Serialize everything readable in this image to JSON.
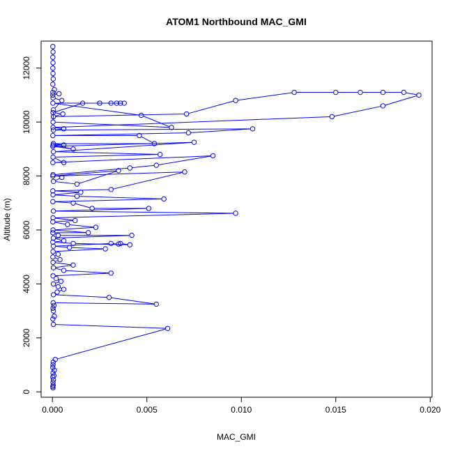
{
  "chart_data": {
    "type": "line",
    "title": "ATOM1 Northbound MAC_GMI",
    "xlabel": "MAC_GMI",
    "ylabel": "Altitude (m)",
    "xlim": [
      -0.0006,
      0.0201
    ],
    "ylim": [
      -200,
      13000
    ],
    "x_ticks": [
      0.0,
      0.005,
      0.01,
      0.015,
      0.02
    ],
    "x_tick_labels": [
      "0.000",
      "0.005",
      "0.010",
      "0.015",
      "0.020"
    ],
    "y_ticks": [
      0,
      2000,
      4000,
      6000,
      8000,
      10000,
      12000
    ],
    "y_tick_labels": [
      "0",
      "2000",
      "4000",
      "6000",
      "8000",
      "10000",
      "12000"
    ],
    "grid": false,
    "legend": "none",
    "marker": "open-circle",
    "series_color": "#0000ff",
    "series": [
      {
        "points": [
          [
            3e-05,
            150
          ],
          [
            2e-05,
            200
          ],
          [
            4e-05,
            250
          ],
          [
            3e-05,
            350
          ],
          [
            5e-05,
            450
          ],
          [
            2e-05,
            550
          ],
          [
            8e-05,
            600
          ],
          [
            3e-05,
            700
          ],
          [
            0.0001,
            800
          ],
          [
            2e-05,
            900
          ],
          [
            3e-05,
            1000
          ],
          [
            4e-05,
            1100
          ],
          [
            0.00015,
            1200
          ],
          [
            0.0061,
            2350
          ],
          [
            5e-05,
            2500
          ],
          [
            2e-05,
            2700
          ],
          [
            0.0001,
            2800
          ],
          [
            5e-05,
            3000
          ],
          [
            3e-05,
            3100
          ],
          [
            8e-05,
            3200
          ],
          [
            4e-05,
            3300
          ],
          [
            0.0055,
            3250
          ],
          [
            0.003,
            3500
          ],
          [
            5e-05,
            3600
          ],
          [
            0.00025,
            3700
          ],
          [
            0.0006,
            3800
          ],
          [
            0.0003,
            3900
          ],
          [
            5e-05,
            4000
          ],
          [
            0.00045,
            4100
          ],
          [
            0.0002,
            4200
          ],
          [
            3e-05,
            4300
          ],
          [
            0.0031,
            4400
          ],
          [
            0.0006,
            4500
          ],
          [
            5e-05,
            4600
          ],
          [
            0.0011,
            4700
          ],
          [
            3e-05,
            4800
          ],
          [
            0.0004,
            4900
          ],
          [
            2e-05,
            5000
          ],
          [
            0.0003,
            5100
          ],
          [
            3e-05,
            5200
          ],
          [
            0.0028,
            5300
          ],
          [
            0.0009,
            5350
          ],
          [
            5e-05,
            5400
          ],
          [
            0.0031,
            5500
          ],
          [
            0.0035,
            5480
          ],
          [
            0.0036,
            5500
          ],
          [
            0.0041,
            5450
          ],
          [
            0.0011,
            5500
          ],
          [
            2e-05,
            5550
          ],
          [
            0.0006,
            5600
          ],
          [
            5e-05,
            5700
          ],
          [
            0.0042,
            5800
          ],
          [
            0.0003,
            5800
          ],
          [
            2e-05,
            5900
          ],
          [
            0.0019,
            5900
          ],
          [
            3e-05,
            6000
          ],
          [
            0.0023,
            6100
          ],
          [
            0.0008,
            6200
          ],
          [
            2e-05,
            6300
          ],
          [
            0.0012,
            6350
          ],
          [
            3e-05,
            6450
          ],
          [
            0.0097,
            6620
          ],
          [
            5e-05,
            6700
          ],
          [
            0.0051,
            6800
          ],
          [
            0.0021,
            6800
          ],
          [
            0.0011,
            7000
          ],
          [
            2e-05,
            7050
          ],
          [
            0.0059,
            7150
          ],
          [
            0.0013,
            7250
          ],
          [
            3e-05,
            7300
          ],
          [
            0.0015,
            7400
          ],
          [
            2e-05,
            7450
          ],
          [
            0.0031,
            7500
          ],
          [
            0.007,
            8150
          ],
          [
            2e-05,
            8000
          ],
          [
            0.0035,
            8200
          ],
          [
            0.0013,
            7700
          ],
          [
            5e-05,
            7800
          ],
          [
            0.0005,
            7950
          ],
          [
            3e-05,
            8050
          ],
          [
            0.0041,
            8300
          ],
          [
            0.0055,
            8400
          ],
          [
            0.0085,
            8750
          ],
          [
            2e-05,
            8500
          ],
          [
            0.0006,
            8500
          ],
          [
            3e-05,
            8700
          ],
          [
            0.0057,
            8800
          ],
          [
            5e-05,
            8900
          ],
          [
            0.0075,
            9250
          ],
          [
            2e-05,
            9100
          ],
          [
            0.0011,
            9000
          ],
          [
            3e-05,
            9150
          ],
          [
            0.0006,
            9150
          ],
          [
            5e-05,
            9200
          ],
          [
            0.0054,
            9200
          ],
          [
            0.0046,
            9500
          ],
          [
            2e-05,
            9500
          ],
          [
            0.0072,
            9600
          ],
          [
            0.0106,
            9750
          ],
          [
            5e-05,
            9700
          ],
          [
            0.0006,
            9750
          ],
          [
            3e-05,
            9800
          ],
          [
            0.0148,
            10200
          ],
          [
            0.0175,
            10600
          ],
          [
            0.0194,
            11000
          ],
          [
            0.0186,
            11100
          ],
          [
            0.0175,
            11100
          ],
          [
            0.0163,
            11100
          ],
          [
            0.015,
            11100
          ],
          [
            0.0128,
            11100
          ],
          [
            0.0097,
            10800
          ],
          [
            0.0071,
            10300
          ],
          [
            5e-05,
            10200
          ],
          [
            0.00055,
            10300
          ],
          [
            3e-05,
            10350
          ],
          [
            0.0016,
            10700
          ],
          [
            0.0025,
            10700
          ],
          [
            0.0031,
            10700
          ],
          [
            0.0034,
            10700
          ],
          [
            0.0036,
            10700
          ],
          [
            0.0038,
            10700
          ],
          [
            2e-05,
            10700
          ],
          [
            0.0047,
            10250
          ],
          [
            0.0063,
            9800
          ],
          [
            3e-05,
            10000
          ],
          [
            5e-05,
            10450
          ],
          [
            0.0005,
            10800
          ],
          [
            3e-05,
            10900
          ],
          [
            2e-05,
            11000
          ],
          [
            0.00035,
            11050
          ],
          [
            2e-05,
            11100
          ],
          [
            0.0001,
            11200
          ],
          [
            2e-05,
            11400
          ],
          [
            4e-05,
            11600
          ],
          [
            3e-05,
            11800
          ],
          [
            2e-05,
            12000
          ],
          [
            3e-05,
            12200
          ],
          [
            2e-05,
            12400
          ],
          [
            3e-05,
            12600
          ],
          [
            2e-05,
            12800
          ]
        ]
      }
    ]
  }
}
